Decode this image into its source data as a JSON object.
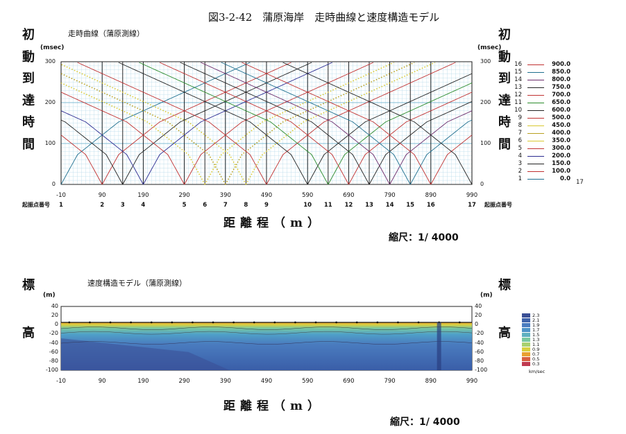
{
  "title": "図3-2-42　蒲原海岸　走時曲線と速度構造モデル",
  "top_panel": {
    "subtitle": "走時曲線（蒲原測線）",
    "ylabel_chars": [
      "初",
      "動",
      "到",
      "達",
      "時",
      "間"
    ],
    "yunit": "(msec)",
    "yticks": [
      "0",
      "100",
      "200",
      "300"
    ],
    "xticks": [
      "-10",
      "90",
      "190",
      "290",
      "390",
      "490",
      "590",
      "690",
      "790",
      "890",
      "990"
    ],
    "shot_label": "起振点番号",
    "shots": [
      "1",
      "2",
      "3",
      "4",
      "5",
      "6",
      "7",
      "8",
      "9",
      "10",
      "11",
      "12",
      "13",
      "14",
      "15",
      "16",
      "17"
    ],
    "xtitle": "距離程（m）",
    "scale": "縮尺：1/ 4000"
  },
  "legend": {
    "entries": [
      {
        "n": "16",
        "v": "900.0",
        "color": "#c03030"
      },
      {
        "n": "15",
        "v": "850.0",
        "color": "#1e6e8e"
      },
      {
        "n": "14",
        "v": "800.0",
        "color": "#6a2a6a"
      },
      {
        "n": "13",
        "v": "750.0",
        "color": "#222222"
      },
      {
        "n": "12",
        "v": "700.0",
        "color": "#c03030"
      },
      {
        "n": "11",
        "v": "650.0",
        "color": "#2a8a2a"
      },
      {
        "n": "10",
        "v": "600.0",
        "color": "#222222"
      },
      {
        "n": "9",
        "v": "500.0",
        "color": "#c03030"
      },
      {
        "n": "8",
        "v": "450.0",
        "color": "#d8c830"
      },
      {
        "n": "7",
        "v": "400.0",
        "color": "#b8a020"
      },
      {
        "n": "6",
        "v": "350.0",
        "color": "#d8c830"
      },
      {
        "n": "5",
        "v": "300.0",
        "color": "#c03030"
      },
      {
        "n": "4",
        "v": "200.0",
        "color": "#2a2a90"
      },
      {
        "n": "3",
        "v": "150.0",
        "color": "#222222"
      },
      {
        "n": "2",
        "v": "100.0",
        "color": "#c03030"
      },
      {
        "n": "1",
        "v": "0.0",
        "color": "#1e6e8e"
      }
    ],
    "extra": "17"
  },
  "bottom_panel": {
    "subtitle": "速度構造モデル（蒲原測線）",
    "ylabel_chars": [
      "標",
      "高"
    ],
    "yunit": "(m)",
    "yticks": [
      "40",
      "20",
      "0",
      "-20",
      "-40",
      "-60",
      "-80",
      "-100"
    ],
    "xticks": [
      "-10",
      "90",
      "190",
      "290",
      "390",
      "490",
      "590",
      "690",
      "790",
      "890",
      "990"
    ],
    "xtitle": "距離程（m）",
    "scale": "縮尺：1/ 4000",
    "colorbar": [
      "2.3",
      "2.1",
      "1.9",
      "1.7",
      "1.5",
      "1.3",
      "1.1",
      "0.9",
      "0.7",
      "0.5",
      "0.3"
    ],
    "colorbar_unit": "km/sec"
  },
  "chart_data": [
    {
      "type": "line",
      "title": "走時曲線（蒲原測線）",
      "xlabel": "距離程（m）",
      "ylabel": "初動到達時間 (msec)",
      "xlim": [
        -10,
        990
      ],
      "ylim": [
        0,
        300
      ],
      "shots_x": [
        -10,
        90,
        140,
        190,
        290,
        340,
        390,
        440,
        490,
        590,
        640,
        690,
        740,
        790,
        840,
        890,
        990
      ],
      "notes": "17 shot points; first-arrival travel-time curves radiate from each shot (V-shaped), max ~300 msec",
      "legend": [
        {
          "shot": "16",
          "x": "900.0"
        },
        {
          "shot": "15",
          "x": "850.0"
        },
        {
          "shot": "14",
          "x": "800.0"
        },
        {
          "shot": "13",
          "x": "750.0"
        },
        {
          "shot": "12",
          "x": "700.0"
        },
        {
          "shot": "11",
          "x": "650.0"
        },
        {
          "shot": "10",
          "x": "600.0"
        },
        {
          "shot": "9",
          "x": "500.0"
        },
        {
          "shot": "8",
          "x": "450.0"
        },
        {
          "shot": "7",
          "x": "400.0"
        },
        {
          "shot": "6",
          "x": "350.0"
        },
        {
          "shot": "5",
          "x": "300.0"
        },
        {
          "shot": "4",
          "x": "200.0"
        },
        {
          "shot": "3",
          "x": "150.0"
        },
        {
          "shot": "2",
          "x": "100.0"
        },
        {
          "shot": "1",
          "x": "0.0"
        }
      ]
    },
    {
      "type": "heatmap",
      "title": "速度構造モデル（蒲原測線）",
      "xlabel": "距離程（m）",
      "ylabel": "標高 (m)",
      "xlim": [
        -10,
        990
      ],
      "ylim": [
        -100,
        40
      ],
      "colorbar_range_km_per_sec": [
        0.3,
        2.3
      ],
      "surface_elevation_m": 5
    }
  ]
}
